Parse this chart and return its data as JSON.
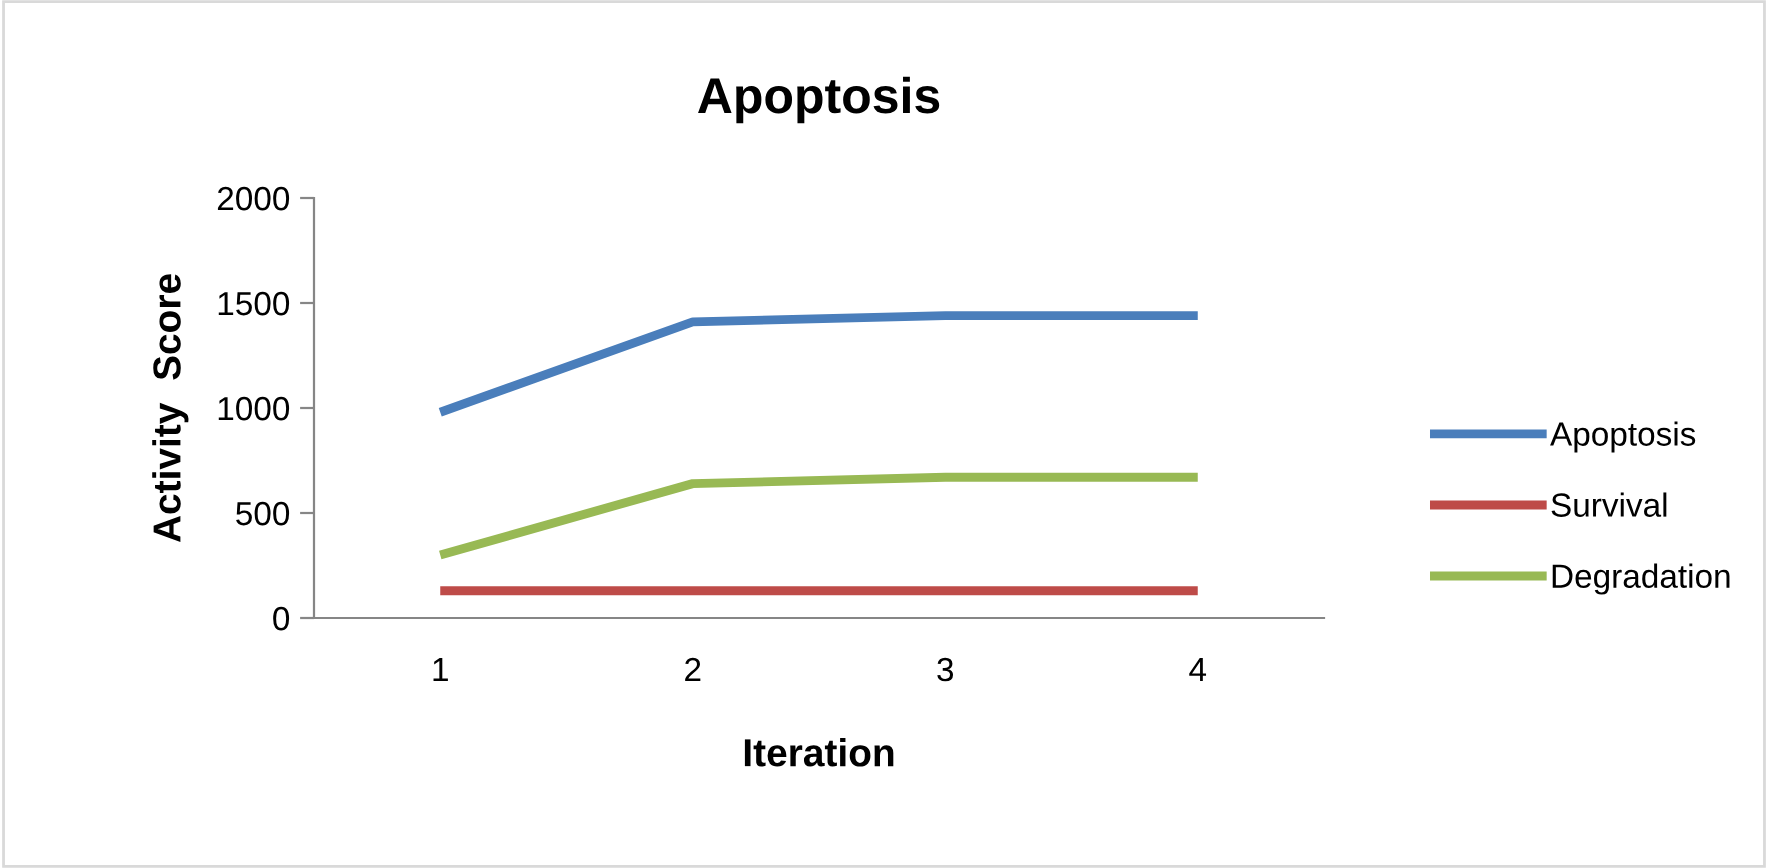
{
  "chart_data": {
    "type": "line",
    "title": "Apoptosis",
    "xlabel": "Iteration",
    "ylabel": "Activity  Score",
    "categories": [
      "1",
      "2",
      "3",
      "4"
    ],
    "series": [
      {
        "name": "Apoptosis",
        "color": "#4a7ebb",
        "values": [
          980,
          1410,
          1440,
          1440
        ]
      },
      {
        "name": "Survival",
        "color": "#be4b48",
        "values": [
          130,
          130,
          130,
          130
        ]
      },
      {
        "name": "Degradation",
        "color": "#98b954",
        "values": [
          300,
          640,
          670,
          670
        ]
      }
    ],
    "ylim": [
      0,
      2000
    ],
    "yticks": [
      0,
      500,
      1000,
      1500,
      2000
    ],
    "grid": false,
    "legend": "right",
    "marker": "none",
    "line_style": "solid"
  }
}
